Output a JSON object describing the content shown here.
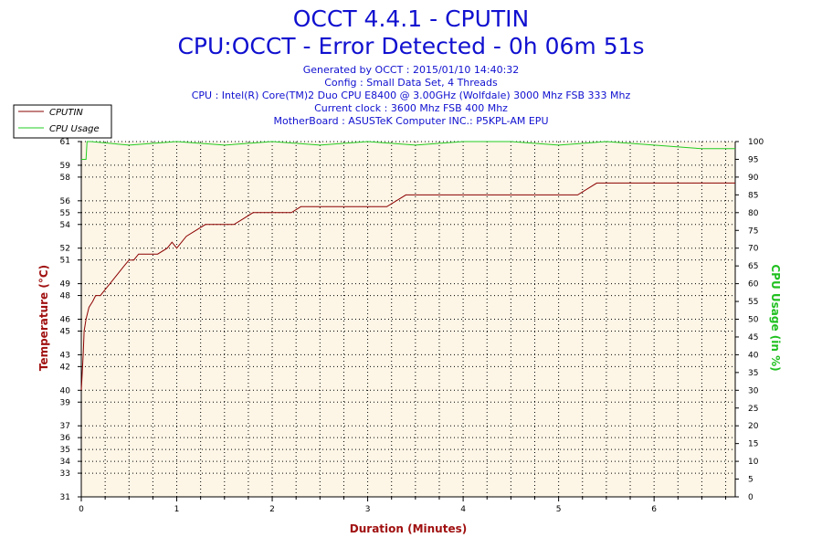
{
  "header": {
    "title": "OCCT 4.4.1 - CPUTIN",
    "subtitle": "CPU:OCCT - Error Detected - 0h 06m 51s",
    "info_lines": [
      "Generated by OCCT : 2015/01/10 14:40:32",
      "Config : Small Data Set, 4 Threads",
      "CPU : Intel(R) Core(TM)2 Duo CPU E8400 @ 3.00GHz (Wolfdale) 3000 Mhz FSB 333 Mhz",
      "Current clock : 3600 Mhz FSB 400 Mhz",
      "MotherBoard : ASUSTeK Computer INC.: P5KPL-AM EPU"
    ]
  },
  "colors": {
    "temperature": "#8b0000",
    "cpu_usage": "#22cc22",
    "plot_bg": "#fdf5e6",
    "grid": "#000000"
  },
  "chart_data": {
    "type": "line",
    "title": "OCCT 4.4.1 - CPUTIN",
    "xlabel": "Duration (Minutes)",
    "ylabel_left": "Temperature (°C)",
    "ylabel_right": "CPU Usage (in %)",
    "xlim": [
      0,
      6.85
    ],
    "ylim_left": [
      31,
      61
    ],
    "ylim_right": [
      0,
      100
    ],
    "x_ticks": [
      0,
      1,
      2,
      3,
      4,
      5,
      6
    ],
    "y_left_ticks": [
      31,
      33,
      34,
      35,
      36,
      37,
      39,
      40,
      42,
      43,
      45,
      46,
      48,
      49,
      51,
      52,
      54,
      55,
      56,
      58,
      59,
      61
    ],
    "y_right_ticks": [
      0,
      5,
      10,
      15,
      20,
      25,
      30,
      35,
      40,
      45,
      50,
      55,
      60,
      65,
      70,
      75,
      80,
      85,
      90,
      95,
      100
    ],
    "grid": true,
    "legend_position": "top-left",
    "series": [
      {
        "name": "CPUTIN",
        "axis": "left",
        "x": [
          0,
          0.02,
          0.03,
          0.05,
          0.08,
          0.12,
          0.15,
          0.2,
          0.25,
          0.3,
          0.35,
          0.4,
          0.45,
          0.5,
          0.55,
          0.6,
          0.7,
          0.8,
          0.9,
          0.95,
          1.0,
          1.1,
          1.2,
          1.3,
          1.4,
          1.5,
          1.6,
          1.7,
          1.8,
          1.9,
          2.0,
          2.1,
          2.2,
          2.3,
          2.4,
          2.5,
          2.6,
          2.7,
          2.8,
          2.9,
          3.0,
          3.2,
          3.4,
          3.6,
          3.8,
          4.0,
          4.2,
          4.4,
          4.6,
          4.8,
          5.0,
          5.2,
          5.4,
          5.6,
          5.8,
          6.0,
          6.2,
          6.4,
          6.6,
          6.8,
          6.85
        ],
        "values": [
          40,
          43,
          45,
          46,
          47,
          47.5,
          48,
          48,
          48.5,
          49,
          49.5,
          50,
          50.5,
          51,
          51,
          51.5,
          51.5,
          51.5,
          52,
          52.5,
          52,
          53,
          53.5,
          54,
          54,
          54,
          54,
          54.5,
          55,
          55,
          55,
          55,
          55,
          55.5,
          55.5,
          55.5,
          55.5,
          55.5,
          55.5,
          55.5,
          55.5,
          55.5,
          56.5,
          56.5,
          56.5,
          56.5,
          56.5,
          56.5,
          56.5,
          56.5,
          56.5,
          56.5,
          57.5,
          57.5,
          57.5,
          57.5,
          57.5,
          57.5,
          57.5,
          57.5,
          57.5
        ]
      },
      {
        "name": "CPU Usage",
        "axis": "right",
        "x": [
          0,
          0.05,
          0.06,
          0.1,
          0.5,
          1.0,
          1.5,
          2.0,
          2.5,
          3.0,
          3.5,
          4.0,
          4.5,
          5.0,
          5.5,
          6.0,
          6.5,
          6.85
        ],
        "values": [
          95,
          95,
          100,
          100,
          99,
          100,
          99,
          100,
          99,
          100,
          99,
          100,
          100,
          99,
          100,
          99,
          98,
          98
        ]
      }
    ]
  }
}
